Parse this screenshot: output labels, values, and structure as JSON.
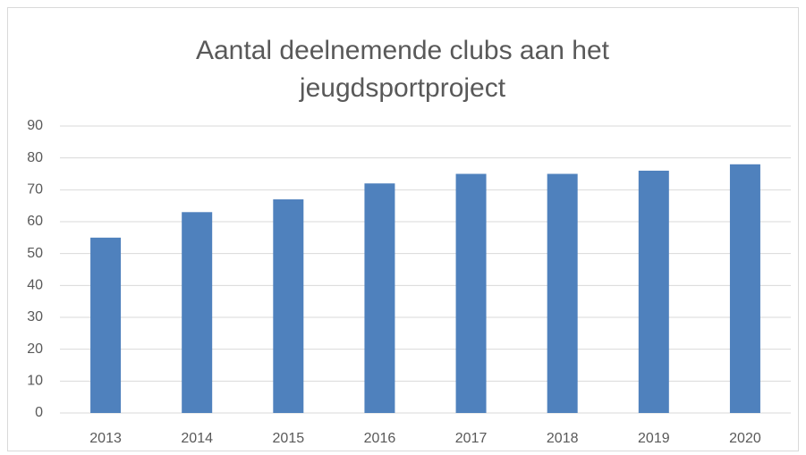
{
  "chart_data": {
    "type": "bar",
    "title": "Aantal deelnemende clubs aan het jeugdsportproject",
    "categories": [
      "2013",
      "2014",
      "2015",
      "2016",
      "2017",
      "2018",
      "2019",
      "2020"
    ],
    "values": [
      55,
      63,
      67,
      72,
      75,
      75,
      76,
      78
    ],
    "color": "#4f81bd",
    "ylim": [
      0,
      90
    ],
    "yticks": [
      0,
      10,
      20,
      30,
      40,
      50,
      60,
      70,
      80,
      90
    ],
    "grid": true
  }
}
